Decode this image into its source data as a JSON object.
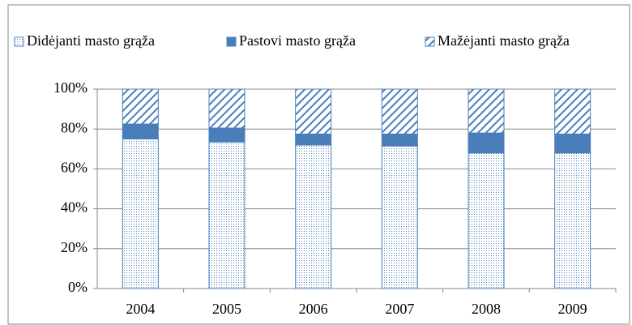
{
  "chart_data": {
    "type": "stacked_bar",
    "categories": [
      "2004",
      "2005",
      "2006",
      "2007",
      "2008",
      "2009"
    ],
    "series": [
      {
        "name": "Didėjanti masto grąža",
        "color": "#4a7ebb",
        "pattern": "dots",
        "values": [
          75,
          73.5,
          72,
          71.5,
          68,
          68
        ]
      },
      {
        "name": "Pastovi masto grąža",
        "color": "#4a7ebb",
        "pattern": "solid",
        "values": [
          7.5,
          7,
          5.5,
          6,
          10,
          9.5
        ]
      },
      {
        "name": "Mažėjanti masto grąža",
        "color": "#4a7ebb",
        "pattern": "hatch",
        "values": [
          17.5,
          19.5,
          22.5,
          22.5,
          22,
          22.5
        ]
      }
    ],
    "ylim": [
      0,
      100
    ],
    "yticks": [
      {
        "value": 0,
        "label": "0%"
      },
      {
        "value": 20,
        "label": "20%"
      },
      {
        "value": 40,
        "label": "40%"
      },
      {
        "value": 60,
        "label": "60%"
      },
      {
        "value": 80,
        "label": "80%"
      },
      {
        "value": 100,
        "label": "100%"
      }
    ],
    "grid": true,
    "legend": "top"
  }
}
